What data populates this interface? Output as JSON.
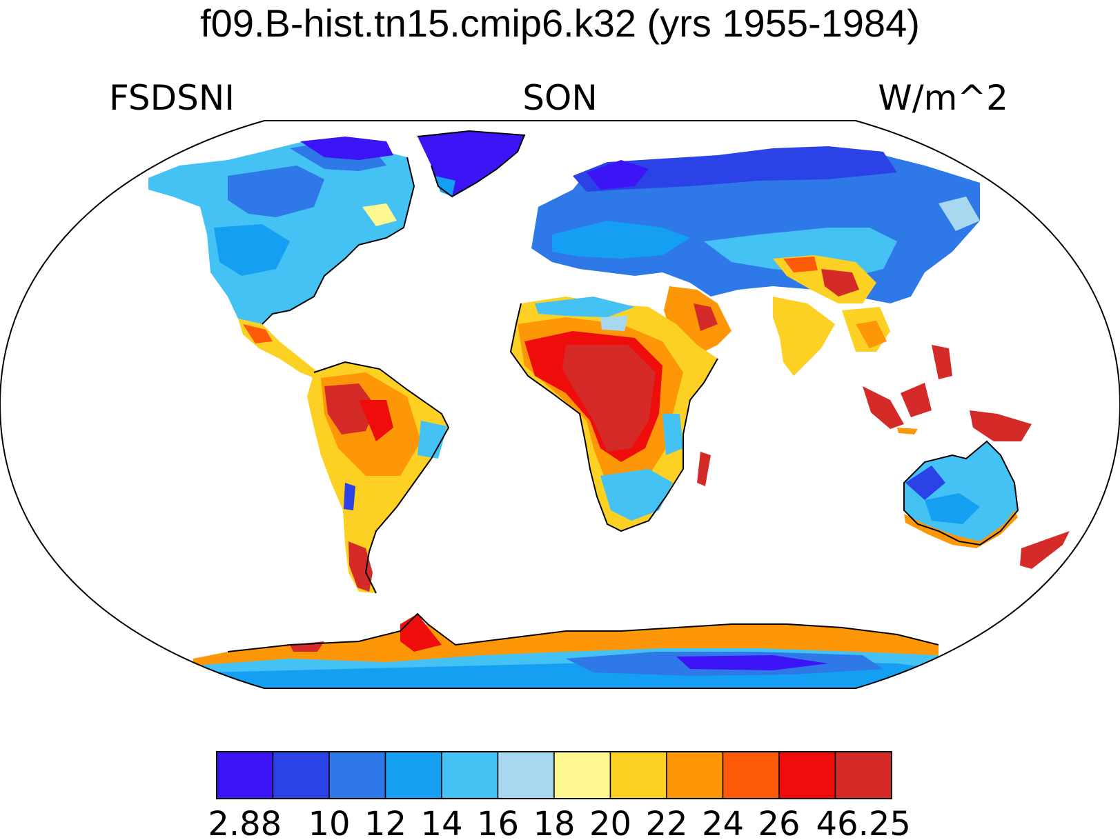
{
  "title": "f09.B-hist.tn15.cmip6.k32 (yrs 1955-1984)",
  "left_label": "FSDSNI",
  "center_label": "SON",
  "right_label": "W/m^2",
  "colorbar": {
    "colors": [
      "#3c14f5",
      "#2a42e6",
      "#2e78e8",
      "#159ff2",
      "#44c2f4",
      "#a8d8ef",
      "#fdf791",
      "#fdd024",
      "#fd9708",
      "#fd5a0a",
      "#ee0d0b",
      "#d42b29"
    ],
    "labels": [
      "2.88",
      "10",
      "12",
      "14",
      "16",
      "18",
      "20",
      "22",
      "24",
      "26",
      "46.25"
    ]
  }
}
